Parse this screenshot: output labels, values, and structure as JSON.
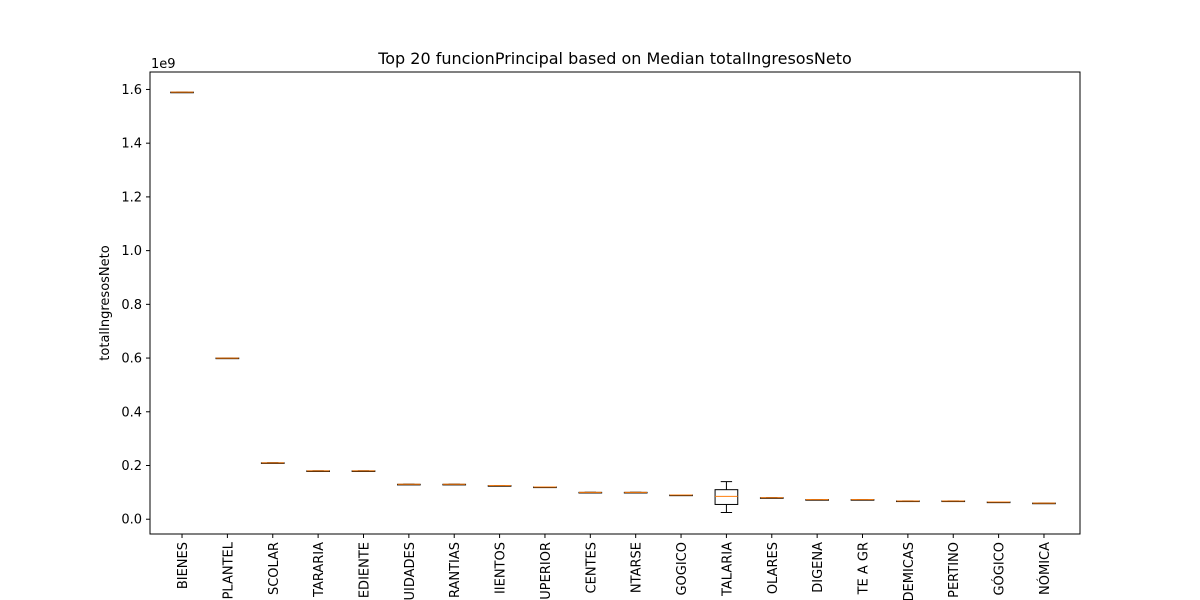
{
  "chart_data": {
    "type": "box",
    "title": "Top 20 funcionPrincipal based on Median totalIngresosNeto",
    "ylabel": "totalIngresosNeto",
    "xlabel": "",
    "y_multiplier_label": "1e9",
    "ylim": [
      -0.055,
      1.665
    ],
    "yticks": [
      0.0,
      0.2,
      0.4,
      0.6,
      0.8,
      1.0,
      1.2,
      1.4,
      1.6
    ],
    "ytick_labels": [
      "0.0",
      "0.2",
      "0.4",
      "0.6",
      "0.8",
      "1.0",
      "1.2",
      "1.4",
      "1.6"
    ],
    "categories": [
      "BIENES",
      "PLANTEL",
      "SCOLAR",
      "TARARIA",
      "EDIENTE",
      "UIDADES",
      "RANTIAS",
      "IIENTOS",
      "UPERIOR",
      "CENTES",
      "NTARSE",
      "GOGICO",
      "TALARIA",
      "OLARES",
      "DIGENA",
      "TE A GR",
      "DEMICAS",
      "PERTINO",
      "GÓGICO",
      "NÓMICA"
    ],
    "boxes": [
      {
        "whislo": 1.59,
        "q1": 1.59,
        "med": 1.59,
        "q3": 1.59,
        "whishi": 1.59
      },
      {
        "whislo": 0.6,
        "q1": 0.6,
        "med": 0.6,
        "q3": 0.6,
        "whishi": 0.6
      },
      {
        "whislo": 0.21,
        "q1": 0.21,
        "med": 0.21,
        "q3": 0.21,
        "whishi": 0.21
      },
      {
        "whislo": 0.18,
        "q1": 0.18,
        "med": 0.18,
        "q3": 0.18,
        "whishi": 0.18
      },
      {
        "whislo": 0.18,
        "q1": 0.18,
        "med": 0.18,
        "q3": 0.18,
        "whishi": 0.18
      },
      {
        "whislo": 0.13,
        "q1": 0.13,
        "med": 0.13,
        "q3": 0.13,
        "whishi": 0.13
      },
      {
        "whislo": 0.13,
        "q1": 0.13,
        "med": 0.13,
        "q3": 0.13,
        "whishi": 0.13
      },
      {
        "whislo": 0.125,
        "q1": 0.125,
        "med": 0.125,
        "q3": 0.125,
        "whishi": 0.125
      },
      {
        "whislo": 0.12,
        "q1": 0.12,
        "med": 0.12,
        "q3": 0.12,
        "whishi": 0.12
      },
      {
        "whislo": 0.1,
        "q1": 0.1,
        "med": 0.1,
        "q3": 0.1,
        "whishi": 0.1
      },
      {
        "whislo": 0.1,
        "q1": 0.1,
        "med": 0.1,
        "q3": 0.1,
        "whishi": 0.1
      },
      {
        "whislo": 0.09,
        "q1": 0.09,
        "med": 0.09,
        "q3": 0.09,
        "whishi": 0.09
      },
      {
        "whislo": 0.025,
        "q1": 0.055,
        "med": 0.085,
        "q3": 0.11,
        "whishi": 0.14
      },
      {
        "whislo": 0.08,
        "q1": 0.08,
        "med": 0.08,
        "q3": 0.08,
        "whishi": 0.08
      },
      {
        "whislo": 0.073,
        "q1": 0.073,
        "med": 0.073,
        "q3": 0.073,
        "whishi": 0.073
      },
      {
        "whislo": 0.073,
        "q1": 0.073,
        "med": 0.073,
        "q3": 0.073,
        "whishi": 0.073
      },
      {
        "whislo": 0.068,
        "q1": 0.068,
        "med": 0.068,
        "q3": 0.068,
        "whishi": 0.068
      },
      {
        "whislo": 0.068,
        "q1": 0.068,
        "med": 0.068,
        "q3": 0.068,
        "whishi": 0.068
      },
      {
        "whislo": 0.064,
        "q1": 0.064,
        "med": 0.064,
        "q3": 0.064,
        "whishi": 0.064
      },
      {
        "whislo": 0.06,
        "q1": 0.06,
        "med": 0.06,
        "q3": 0.06,
        "whishi": 0.06
      }
    ],
    "grid": false,
    "colors": {
      "box": "#000000",
      "median": "#ff7f0e"
    }
  }
}
